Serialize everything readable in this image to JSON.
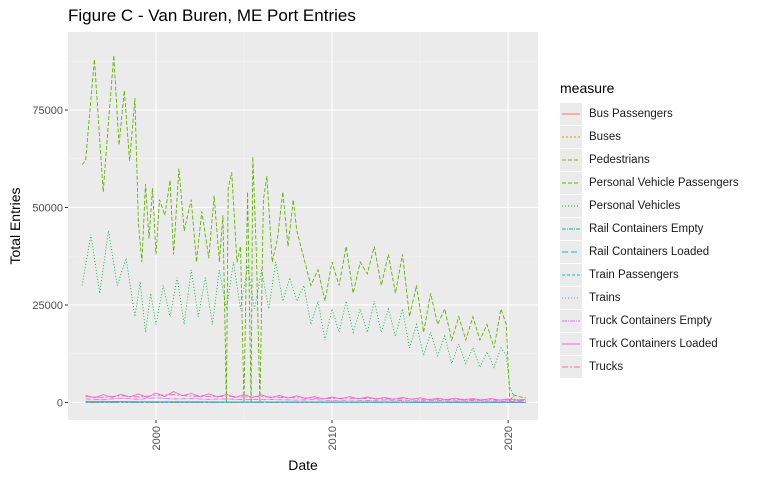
{
  "chart_data": {
    "type": "line",
    "title": "Figure C - Van Buren, ME Port Entries",
    "xlabel": "Date",
    "ylabel": "Total Entries",
    "xlim": [
      1995.0,
      2021.7
    ],
    "ylim": [
      -4500,
      95000
    ],
    "x_ticks": [
      2000,
      2010,
      2020
    ],
    "x_tick_labels": [
      "2000",
      "2010",
      "2020"
    ],
    "y_ticks": [
      0,
      25000,
      50000,
      75000
    ],
    "y_tick_labels": [
      "0",
      "25000",
      "50000",
      "75000"
    ],
    "grid": true,
    "legend_position": "right",
    "legend_title": "measure",
    "series": [
      {
        "name": "Bus Passengers",
        "color": "#F8766D",
        "dash": "",
        "x": [
          1996,
          1998,
          2000,
          2002,
          2004,
          2006,
          2008,
          2010,
          2012,
          2014,
          2016,
          2018,
          2020,
          2021
        ],
        "y": [
          300,
          250,
          200,
          200,
          150,
          150,
          120,
          100,
          100,
          80,
          80,
          60,
          40,
          20
        ]
      },
      {
        "name": "Buses",
        "color": "#DB8E00",
        "dash": "2,2",
        "x": [
          1996,
          2000,
          2004,
          2008,
          2012,
          2016,
          2020,
          2021
        ],
        "y": [
          15,
          12,
          10,
          8,
          6,
          5,
          3,
          2
        ]
      },
      {
        "name": "Pedestrians",
        "color": "#AEA200",
        "dash": "4,2",
        "x": [
          1996,
          2000,
          2004,
          2008,
          2012,
          2016,
          2020,
          2021
        ],
        "y": [
          150,
          120,
          100,
          100,
          80,
          60,
          40,
          20
        ]
      },
      {
        "name": "Personal Vehicle Passengers",
        "color": "#64B200",
        "dash": "4,2",
        "x": [
          1995.8,
          1996.0,
          1996.5,
          1997.0,
          1997.3,
          1997.6,
          1997.9,
          1998.2,
          1998.5,
          1998.8,
          1999.0,
          1999.2,
          1999.4,
          1999.6,
          1999.8,
          2000.0,
          2000.2,
          2000.5,
          2000.8,
          2001.0,
          2001.3,
          2001.6,
          2002.0,
          2002.3,
          2002.6,
          2003.0,
          2003.3,
          2003.6,
          2003.8,
          2004.0,
          2004.1,
          2004.3,
          2004.6,
          2004.8,
          2005.0,
          2005.2,
          2005.4,
          2005.5,
          2005.7,
          2005.9,
          2006.1,
          2006.3,
          2006.6,
          2006.9,
          2007.2,
          2007.5,
          2007.8,
          2008.0,
          2008.4,
          2008.8,
          2009.2,
          2009.6,
          2010.0,
          2010.4,
          2010.8,
          2011.2,
          2011.6,
          2012.0,
          2012.4,
          2012.8,
          2013.2,
          2013.6,
          2014.0,
          2014.4,
          2014.8,
          2015.2,
          2015.6,
          2016.0,
          2016.4,
          2016.8,
          2017.2,
          2017.6,
          2018.0,
          2018.4,
          2018.8,
          2019.2,
          2019.6,
          2019.9,
          2020.0,
          2020.1,
          2020.3,
          2020.6,
          2021.0
        ],
        "y": [
          61000,
          62000,
          88000,
          54000,
          72000,
          89000,
          66000,
          80000,
          62000,
          78000,
          46000,
          36000,
          56000,
          42000,
          55000,
          38000,
          52000,
          48000,
          57000,
          38000,
          60000,
          44000,
          52000,
          36000,
          49000,
          37000,
          53000,
          36000,
          48000,
          0,
          55000,
          59000,
          36000,
          40000,
          0,
          54000,
          0,
          63000,
          38000,
          0,
          52000,
          58000,
          36000,
          42000,
          54000,
          40000,
          52000,
          44000,
          37000,
          30000,
          34000,
          26000,
          36000,
          30000,
          40000,
          28000,
          36000,
          33000,
          40000,
          30000,
          38000,
          28000,
          38000,
          22000,
          30000,
          18000,
          28000,
          20000,
          24000,
          16000,
          22000,
          16000,
          22000,
          16000,
          20000,
          14000,
          24000,
          20000,
          10000,
          0,
          2000,
          1500,
          1200
        ]
      },
      {
        "name": "Personal Vehicles",
        "color": "#00BA38",
        "dash": "1,2",
        "x": [
          1995.8,
          1996.3,
          1996.8,
          1997.3,
          1997.8,
          1998.3,
          1998.8,
          1999.1,
          1999.4,
          1999.7,
          2000.0,
          2000.4,
          2000.8,
          2001.2,
          2001.6,
          2002.0,
          2002.4,
          2002.8,
          2003.2,
          2003.6,
          2004.0,
          2004.4,
          2004.8,
          2005.2,
          2005.6,
          2006.0,
          2006.4,
          2006.8,
          2007.2,
          2007.6,
          2008.0,
          2008.4,
          2008.8,
          2009.2,
          2009.6,
          2010.0,
          2010.4,
          2010.8,
          2011.2,
          2011.6,
          2012.0,
          2012.4,
          2012.8,
          2013.2,
          2013.6,
          2014.0,
          2014.4,
          2014.8,
          2015.2,
          2015.6,
          2016.0,
          2016.4,
          2016.8,
          2017.2,
          2017.6,
          2018.0,
          2018.4,
          2018.8,
          2019.2,
          2019.6,
          2019.9,
          2020.1,
          2020.4,
          2021.0
        ],
        "y": [
          30000,
          43000,
          28000,
          44000,
          30000,
          37000,
          22000,
          31000,
          18000,
          28000,
          20000,
          30000,
          22000,
          32000,
          20000,
          34000,
          22000,
          32000,
          20000,
          34000,
          24000,
          36000,
          24000,
          35000,
          24000,
          34000,
          24000,
          36000,
          26000,
          32000,
          26000,
          30000,
          20000,
          26000,
          16000,
          24000,
          18000,
          26000,
          18000,
          24000,
          18000,
          26000,
          18000,
          24000,
          17000,
          24000,
          14000,
          20000,
          12000,
          18000,
          12000,
          17000,
          10000,
          15000,
          10000,
          14000,
          9000,
          13000,
          9000,
          14000,
          12000,
          4000,
          800,
          600
        ]
      },
      {
        "name": "Rail Containers Empty",
        "color": "#00C08B",
        "dash": "4,1,1,1",
        "x": [
          1996,
          2000,
          2004,
          2008,
          2012,
          2016,
          2020,
          2021
        ],
        "y": [
          80,
          90,
          70,
          60,
          50,
          40,
          30,
          20
        ]
      },
      {
        "name": "Rail Containers Loaded",
        "color": "#00BFC4",
        "dash": "6,3",
        "x": [
          1996,
          2000,
          2004,
          2008,
          2012,
          2016,
          2020,
          2021
        ],
        "y": [
          120,
          140,
          110,
          90,
          80,
          70,
          60,
          50
        ]
      },
      {
        "name": "Train Passengers",
        "color": "#00B4F0",
        "dash": "3,2",
        "x": [
          1996,
          2000,
          2004,
          2008,
          2012,
          2016,
          2020,
          2021
        ],
        "y": [
          10,
          10,
          8,
          6,
          5,
          4,
          3,
          2
        ]
      },
      {
        "name": "Trains",
        "color": "#619CFF",
        "dash": "1,2",
        "x": [
          1996,
          2000,
          2004,
          2008,
          2012,
          2016,
          2020,
          2021
        ],
        "y": [
          40,
          40,
          35,
          30,
          30,
          25,
          20,
          20
        ]
      },
      {
        "name": "Truck Containers Empty",
        "color": "#DF70F8",
        "dash": "5,1,1,1",
        "x": [
          1996,
          1997,
          1998,
          1999,
          2000,
          2001,
          2002,
          2003,
          2004,
          2005,
          2006,
          2007,
          2008,
          2009,
          2010,
          2011,
          2012,
          2013,
          2014,
          2015,
          2016,
          2017,
          2018,
          2019,
          2020,
          2021
        ],
        "y": [
          900,
          700,
          1100,
          800,
          1200,
          900,
          1000,
          800,
          900,
          700,
          800,
          700,
          600,
          700,
          500,
          600,
          500,
          600,
          500,
          400,
          500,
          400,
          500,
          400,
          300,
          300
        ]
      },
      {
        "name": "Truck Containers Loaded",
        "color": "#F564E3",
        "dash": "",
        "x": [
          1996,
          1996.5,
          1997,
          1997.5,
          1998,
          1998.5,
          1999,
          1999.5,
          2000,
          2000.5,
          2001,
          2001.5,
          2002,
          2002.5,
          2003,
          2003.5,
          2004,
          2004.5,
          2005,
          2005.5,
          2006,
          2006.5,
          2007,
          2007.5,
          2008,
          2008.5,
          2009,
          2009.5,
          2010,
          2010.5,
          2011,
          2011.5,
          2012,
          2012.5,
          2013,
          2013.5,
          2014,
          2014.5,
          2015,
          2015.5,
          2016,
          2016.5,
          2017,
          2017.5,
          2018,
          2018.5,
          2019,
          2019.5,
          2020,
          2020.5,
          2021
        ],
        "y": [
          1800,
          1200,
          2000,
          1300,
          2100,
          1400,
          2200,
          1300,
          2400,
          1500,
          2800,
          1700,
          2300,
          1500,
          2200,
          1400,
          2100,
          1300,
          2000,
          1300,
          1900,
          1200,
          1800,
          1100,
          1700,
          1000,
          1500,
          900,
          1400,
          900,
          1500,
          900,
          1400,
          900,
          1300,
          800,
          1300,
          800,
          1200,
          700,
          1100,
          700,
          1100,
          700,
          1000,
          600,
          1000,
          600,
          900,
          600,
          800
        ]
      },
      {
        "name": "Trucks",
        "color": "#FF64B0",
        "dash": "6,2,2,2",
        "x": [
          1996,
          1997,
          1998,
          1999,
          2000,
          2001,
          2002,
          2003,
          2004,
          2005,
          2006,
          2007,
          2008,
          2009,
          2010,
          2011,
          2012,
          2013,
          2014,
          2015,
          2016,
          2017,
          2018,
          2019,
          2020,
          2021
        ],
        "y": [
          1500,
          1300,
          1700,
          1400,
          1800,
          2000,
          1600,
          1500,
          1600,
          1400,
          1500,
          1300,
          1200,
          1100,
          1000,
          1100,
          1000,
          900,
          900,
          800,
          800,
          700,
          700,
          700,
          600,
          500
        ]
      }
    ]
  }
}
